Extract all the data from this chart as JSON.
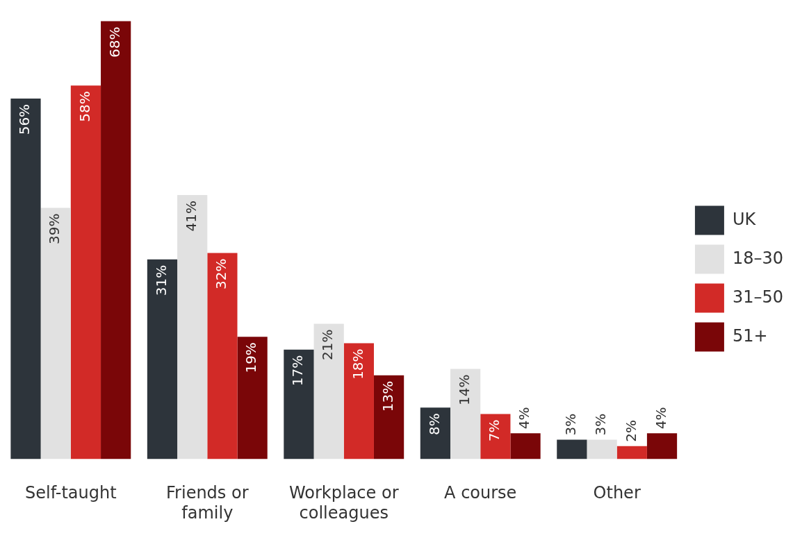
{
  "chart_data": {
    "type": "bar",
    "categories": [
      "Self-taught",
      "Friends or family",
      "Workplace or colleagues",
      "A course",
      "Other"
    ],
    "series": [
      {
        "name": "UK",
        "color": "#2d343b",
        "values": [
          56,
          31,
          17,
          8,
          3
        ],
        "value_labels": [
          "56%",
          "31%",
          "17%",
          "8%",
          "3%"
        ]
      },
      {
        "name": "18–30",
        "color": "#e1e1e1",
        "values": [
          39,
          41,
          21,
          14,
          3
        ],
        "value_labels": [
          "39%",
          "41%",
          "21%",
          "14%",
          "3%"
        ]
      },
      {
        "name": "31–50",
        "color": "#d22a27",
        "values": [
          58,
          32,
          18,
          7,
          2
        ],
        "value_labels": [
          "58%",
          "32%",
          "18%",
          "7%",
          "2%"
        ]
      },
      {
        "name": "51+",
        "color": "#7a0608",
        "values": [
          68,
          19,
          13,
          4,
          4
        ],
        "value_labels": [
          "68%",
          "19%",
          "13%",
          "4%",
          "4%"
        ]
      }
    ],
    "legend": "right",
    "grid": false
  }
}
